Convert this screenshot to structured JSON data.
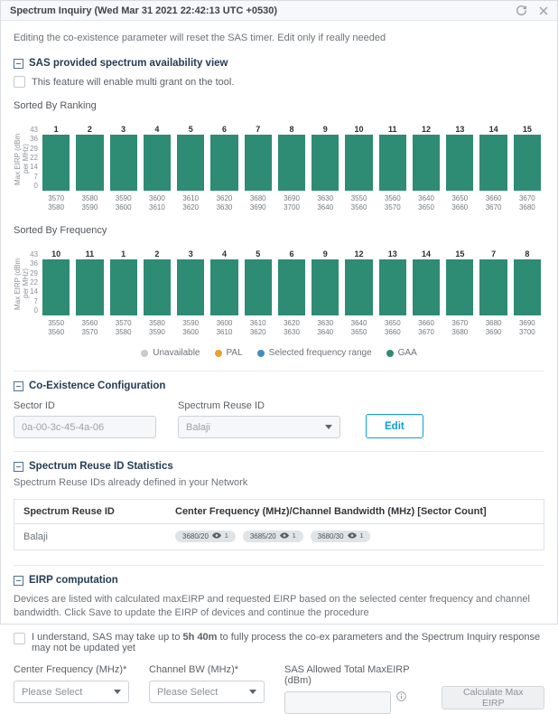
{
  "window": {
    "title": "Spectrum Inquiry (Wed Mar 31 2021 22:42:13 UTC +0530)"
  },
  "warning": "Editing the co-existence parameter will reset the SAS timer. Edit only if really needed",
  "availability": {
    "title": "SAS provided spectrum availability view",
    "checkbox_label": "This feature will enable multi grant on the tool."
  },
  "charts": [
    {
      "name": "Sorted By Ranking",
      "type": "bar",
      "ylabel": "Max EIRP (dBm per MHz)",
      "yticks": [
        43,
        36,
        29,
        22,
        14,
        7,
        0
      ],
      "ylim": [
        0,
        43
      ],
      "bar_color": "#2e8b74",
      "series_name": "GAA",
      "bars": [
        {
          "rank": "1",
          "range": [
            "3570",
            "3580"
          ],
          "value": 38
        },
        {
          "rank": "2",
          "range": [
            "3580",
            "3590"
          ],
          "value": 38
        },
        {
          "rank": "3",
          "range": [
            "3590",
            "3600"
          ],
          "value": 38
        },
        {
          "rank": "4",
          "range": [
            "3600",
            "3610"
          ],
          "value": 38
        },
        {
          "rank": "5",
          "range": [
            "3610",
            "3620"
          ],
          "value": 38
        },
        {
          "rank": "6",
          "range": [
            "3620",
            "3630"
          ],
          "value": 38
        },
        {
          "rank": "7",
          "range": [
            "3680",
            "3690"
          ],
          "value": 38
        },
        {
          "rank": "8",
          "range": [
            "3690",
            "3700"
          ],
          "value": 38
        },
        {
          "rank": "9",
          "range": [
            "3630",
            "3640"
          ],
          "value": 38
        },
        {
          "rank": "10",
          "range": [
            "3550",
            "3560"
          ],
          "value": 38
        },
        {
          "rank": "11",
          "range": [
            "3560",
            "3570"
          ],
          "value": 38
        },
        {
          "rank": "12",
          "range": [
            "3640",
            "3650"
          ],
          "value": 38
        },
        {
          "rank": "13",
          "range": [
            "3650",
            "3660"
          ],
          "value": 38
        },
        {
          "rank": "14",
          "range": [
            "3660",
            "3670"
          ],
          "value": 38
        },
        {
          "rank": "15",
          "range": [
            "3670",
            "3680"
          ],
          "value": 38
        }
      ]
    },
    {
      "name": "Sorted By Frequency",
      "type": "bar",
      "ylabel": "Max EIRP (dBm per MHz)",
      "yticks": [
        43,
        36,
        29,
        22,
        14,
        7,
        0
      ],
      "ylim": [
        0,
        43
      ],
      "bar_color": "#2e8b74",
      "series_name": "GAA",
      "bars": [
        {
          "rank": "10",
          "range": [
            "3550",
            "3560"
          ],
          "value": 38
        },
        {
          "rank": "11",
          "range": [
            "3560",
            "3570"
          ],
          "value": 38
        },
        {
          "rank": "1",
          "range": [
            "3570",
            "3580"
          ],
          "value": 38
        },
        {
          "rank": "2",
          "range": [
            "3580",
            "3590"
          ],
          "value": 38
        },
        {
          "rank": "3",
          "range": [
            "3590",
            "3600"
          ],
          "value": 38
        },
        {
          "rank": "4",
          "range": [
            "3600",
            "3610"
          ],
          "value": 38
        },
        {
          "rank": "5",
          "range": [
            "3610",
            "3620"
          ],
          "value": 38
        },
        {
          "rank": "6",
          "range": [
            "3620",
            "3630"
          ],
          "value": 38
        },
        {
          "rank": "9",
          "range": [
            "3630",
            "3640"
          ],
          "value": 38
        },
        {
          "rank": "12",
          "range": [
            "3640",
            "3650"
          ],
          "value": 38
        },
        {
          "rank": "13",
          "range": [
            "3650",
            "3660"
          ],
          "value": 38
        },
        {
          "rank": "14",
          "range": [
            "3660",
            "3670"
          ],
          "value": 38
        },
        {
          "rank": "15",
          "range": [
            "3670",
            "3680"
          ],
          "value": 38
        },
        {
          "rank": "7",
          "range": [
            "3680",
            "3690"
          ],
          "value": 38
        },
        {
          "rank": "8",
          "range": [
            "3690",
            "3700"
          ],
          "value": 38
        }
      ]
    }
  ],
  "legend": [
    {
      "label": "Unavailable",
      "color": "#c9cacd"
    },
    {
      "label": "PAL",
      "color": "#efa02c"
    },
    {
      "label": "Selected frequency range",
      "color": "#3e8fc6"
    },
    {
      "label": "GAA",
      "color": "#2e8b74"
    }
  ],
  "coexistence": {
    "title": "Co-Existence Configuration",
    "sector_id_label": "Sector ID",
    "sector_id_value": "0a-00-3c-45-4a-06",
    "reuse_id_label": "Spectrum Reuse ID",
    "reuse_id_value": "Balaji",
    "edit_button": "Edit"
  },
  "reuse_stats": {
    "title": "Spectrum Reuse ID Statistics",
    "subtitle": "Spectrum Reuse IDs already defined in your Network",
    "table": {
      "headers": [
        "Spectrum Reuse ID",
        "Center Frequency (MHz)/Channel Bandwidth (MHz) [Sector Count]"
      ],
      "rows": [
        {
          "reuse_id": "Balaji",
          "chips": [
            {
              "text": "3680/20",
              "count": "1"
            },
            {
              "text": "3685/20",
              "count": "1"
            },
            {
              "text": "3680/30",
              "count": "1"
            }
          ]
        }
      ]
    }
  },
  "eirp": {
    "title": "EIRP computation",
    "description": "Devices are listed with calculated maxEIRP and requested EIRP based on the selected center frequency and channel bandwidth. Click Save to update the EIRP of devices and continue the procedure",
    "ack_prefix": "I understand, SAS may take up to ",
    "ack_bold": "5h 40m",
    "ack_suffix": " to fully process the co-ex parameters and the Spectrum Inquiry response may not be updated yet",
    "center_freq_label": "Center Frequency (MHz)*",
    "channel_bw_label": "Channel BW (MHz)*",
    "select_placeholder": "Please Select",
    "max_eirp_label": "SAS Allowed Total MaxEIRP (dBm)",
    "max_eirp_value": "",
    "calculate_button": "Calculate Max EIRP"
  }
}
